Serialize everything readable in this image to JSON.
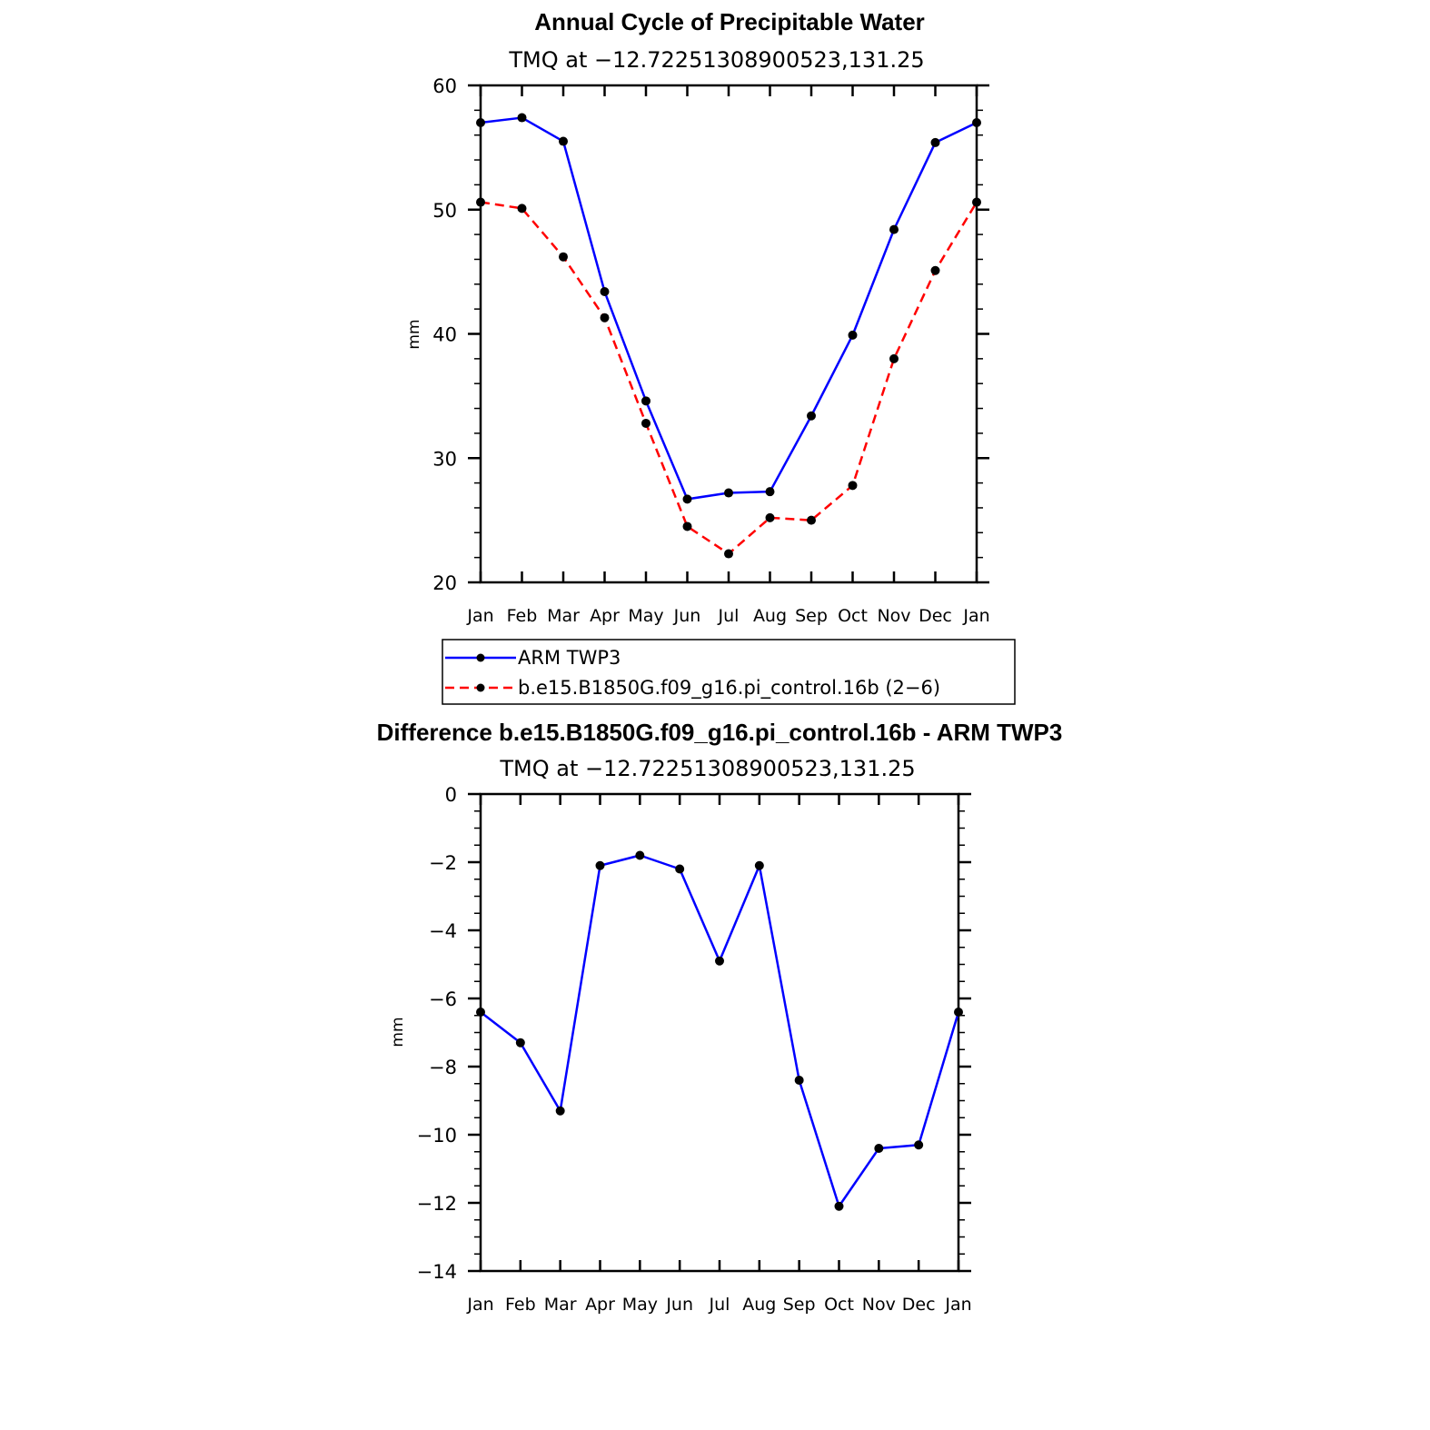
{
  "chart_data": [
    {
      "type": "line",
      "title": "Annual Cycle of Precipitable Water",
      "subtitle": "TMQ at −12.72251308900523,131.25",
      "xlabel": "",
      "ylabel": "mm",
      "ylim": [
        20,
        60
      ],
      "yticks": [
        "20",
        "30",
        "40",
        "50",
        "60"
      ],
      "categories": [
        "Jan",
        "Feb",
        "Mar",
        "Apr",
        "May",
        "Jun",
        "Jul",
        "Aug",
        "Sep",
        "Oct",
        "Nov",
        "Dec",
        "Jan"
      ],
      "series": [
        {
          "name": "ARM TWP3",
          "color": "#0000ff",
          "dash": "solid",
          "values": [
            57.0,
            57.4,
            55.5,
            43.4,
            34.6,
            26.7,
            27.2,
            27.3,
            33.4,
            39.9,
            48.4,
            55.4,
            57.0
          ]
        },
        {
          "name": "b.e15.B1850G.f09_g16.pi_control.16b (2−6)",
          "color": "#ff0000",
          "dash": "dashed",
          "values": [
            50.6,
            50.1,
            46.2,
            41.3,
            32.8,
            24.5,
            22.3,
            25.2,
            25.0,
            27.8,
            38.0,
            45.1,
            50.6
          ]
        }
      ],
      "legend": "below"
    },
    {
      "type": "line",
      "title": "Difference b.e15.B1850G.f09_g16.pi_control.16b - ARM TWP3",
      "subtitle": "TMQ at −12.72251308900523,131.25",
      "xlabel": "",
      "ylabel": "mm",
      "ylim": [
        -14,
        0
      ],
      "yticks": [
        "−14",
        "−12",
        "−10",
        "−8",
        "−6",
        "−4",
        "−2",
        "0"
      ],
      "categories": [
        "Jan",
        "Feb",
        "Mar",
        "Apr",
        "May",
        "Jun",
        "Jul",
        "Aug",
        "Sep",
        "Oct",
        "Nov",
        "Dec",
        "Jan"
      ],
      "series": [
        {
          "name": "Difference",
          "color": "#0000ff",
          "dash": "solid",
          "values": [
            -6.4,
            -7.3,
            -9.3,
            -2.1,
            -1.8,
            -2.2,
            -4.9,
            -2.1,
            -8.4,
            -12.1,
            -10.4,
            -10.3,
            -6.4
          ]
        }
      ]
    }
  ]
}
